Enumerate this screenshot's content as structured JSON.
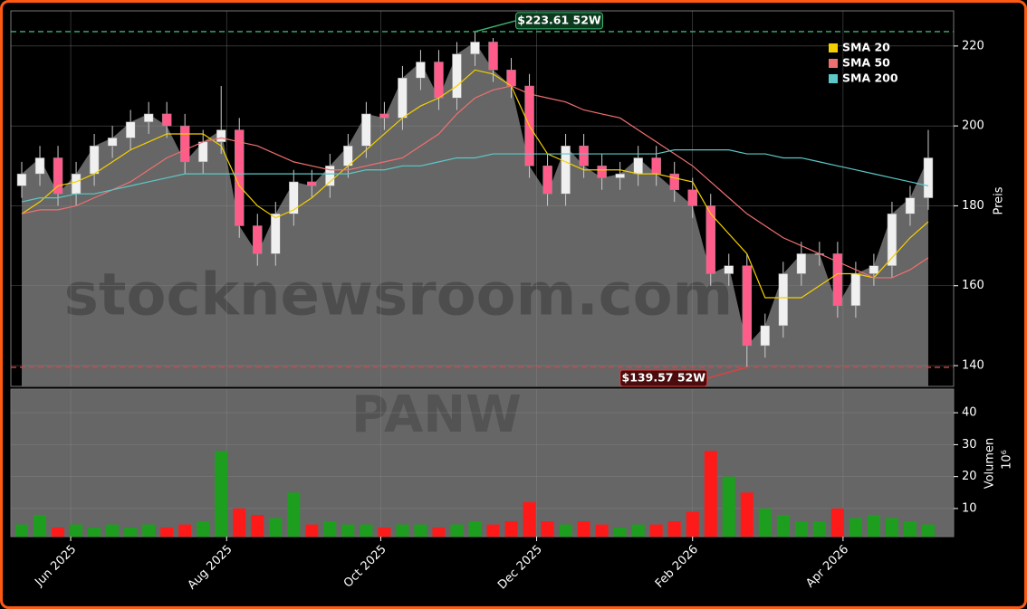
{
  "chart_data": [
    {
      "type": "candlestick",
      "x": [
        0,
        1,
        2,
        3,
        4,
        5,
        6,
        7,
        8,
        9,
        10,
        11,
        12,
        13,
        14,
        15,
        16,
        17,
        18,
        19,
        20,
        21,
        22,
        23,
        24,
        25,
        26,
        27,
        28,
        29,
        30,
        31,
        32,
        33,
        34,
        35,
        36,
        37,
        38,
        39,
        40,
        41,
        42,
        43,
        44,
        45,
        46,
        47,
        48,
        49,
        50
      ],
      "open": [
        185,
        188,
        192,
        183,
        188,
        195,
        197,
        201,
        203,
        200,
        191,
        196,
        199,
        175,
        168,
        178,
        186,
        185,
        190,
        195,
        203,
        202,
        212,
        216,
        207,
        218,
        221,
        214,
        210,
        190,
        183,
        195,
        190,
        187,
        188,
        192,
        188,
        184,
        180,
        163,
        165,
        145,
        150,
        163,
        168,
        168,
        155,
        163,
        165,
        178,
        182
      ],
      "high": [
        191,
        195,
        195,
        191,
        198,
        200,
        204,
        206,
        206,
        203,
        199,
        210,
        202,
        178,
        181,
        189,
        189,
        193,
        198,
        206,
        206,
        215,
        219,
        219,
        221,
        223.61,
        222,
        217,
        213,
        193,
        198,
        198,
        193,
        191,
        195,
        195,
        191,
        187,
        183,
        168,
        168,
        153,
        166,
        171,
        171,
        171,
        166,
        168,
        181,
        185,
        199
      ],
      "low": [
        182,
        185,
        180,
        180,
        185,
        192,
        194,
        198,
        197,
        188,
        188,
        193,
        172,
        165,
        165,
        175,
        182,
        182,
        187,
        192,
        199,
        199,
        209,
        204,
        204,
        215,
        211,
        207,
        187,
        180,
        180,
        187,
        184,
        184,
        185,
        185,
        181,
        177,
        160,
        160,
        139.57,
        142,
        147,
        160,
        165,
        152,
        152,
        160,
        162,
        175,
        179
      ],
      "close": [
        188,
        192,
        183,
        188,
        195,
        197,
        201,
        203,
        200,
        191,
        196,
        199,
        175,
        168,
        178,
        186,
        185,
        190,
        195,
        203,
        202,
        212,
        216,
        207,
        218,
        221,
        214,
        210,
        190,
        183,
        195,
        190,
        187,
        188,
        192,
        188,
        184,
        180,
        163,
        165,
        145,
        150,
        163,
        168,
        168,
        155,
        163,
        165,
        178,
        182,
        192
      ],
      "up_color": "#f0f0f0",
      "down_color": "#ff5c8a",
      "area_color": "#666666",
      "series": [
        {
          "name": "SMA 20",
          "color": "#f5d000",
          "values": [
            178,
            181,
            185,
            186,
            188,
            191,
            194,
            196,
            198,
            198,
            198,
            195,
            185,
            180,
            177,
            179,
            182,
            186,
            190,
            194,
            198,
            202,
            205,
            207,
            210,
            214,
            213,
            210,
            200,
            193,
            191,
            189,
            189,
            189,
            188,
            188,
            187,
            186,
            178,
            173,
            168,
            157,
            157,
            157,
            160,
            163,
            163,
            162,
            167,
            172,
            176
          ]
        },
        {
          "name": "SMA 50",
          "color": "#f07070",
          "values": [
            178,
            179,
            179,
            180,
            182,
            184,
            186,
            189,
            192,
            194,
            196,
            197,
            196,
            195,
            193,
            191,
            190,
            189,
            189,
            190,
            191,
            192,
            195,
            198,
            203,
            207,
            209,
            210,
            208,
            207,
            206,
            204,
            203,
            202,
            199,
            196,
            193,
            190,
            186,
            182,
            178,
            175,
            172,
            170,
            168,
            166,
            164,
            162,
            162,
            164,
            167
          ]
        },
        {
          "name": "SMA 200",
          "color": "#5cc8c8",
          "values": [
            181,
            182,
            182,
            183,
            183,
            184,
            185,
            186,
            187,
            188,
            188,
            188,
            188,
            188,
            188,
            188,
            188,
            188,
            188,
            189,
            189,
            190,
            190,
            191,
            192,
            192,
            193,
            193,
            193,
            193,
            193,
            193,
            193,
            193,
            193,
            193,
            194,
            194,
            194,
            194,
            193,
            193,
            192,
            192,
            191,
            190,
            189,
            188,
            187,
            186,
            185
          ]
        }
      ],
      "reference_lines": [
        {
          "value": 223.61,
          "label": "$223.61 52W",
          "color": "#3cb371"
        },
        {
          "value": 139.57,
          "label": "$139.57 52W",
          "color": "#e04040"
        }
      ],
      "ylabel": "Preis",
      "xlim": [
        -0.6,
        51.4
      ],
      "xticks": [
        {
          "value": 2.7,
          "label": "Jun 2025"
        },
        {
          "value": 11.3,
          "label": "Aug 2025"
        },
        {
          "value": 19.8,
          "label": "Oct 2025"
        },
        {
          "value": 28.4,
          "label": "Dec 2025"
        },
        {
          "value": 37.0,
          "label": "Feb 2026"
        },
        {
          "value": 45.3,
          "label": "Apr 2026"
        }
      ],
      "ylim": [
        134.8,
        228.8
      ],
      "yticks": [
        140,
        160,
        180,
        200,
        220
      ],
      "grid": true,
      "legend": "upper right",
      "watermarks": [
        "stocknewsroom.com",
        "PANW"
      ]
    },
    {
      "type": "volume",
      "x": [
        0,
        1,
        2,
        3,
        4,
        5,
        6,
        7,
        8,
        9,
        10,
        11,
        12,
        13,
        14,
        15,
        16,
        17,
        18,
        19,
        20,
        21,
        22,
        23,
        24,
        25,
        26,
        27,
        28,
        29,
        30,
        31,
        32,
        33,
        34,
        35,
        36,
        37,
        38,
        39,
        40,
        41,
        42,
        43,
        44,
        45,
        46,
        47,
        48,
        49,
        50
      ],
      "values": [
        5,
        8,
        4,
        5,
        4,
        5,
        4,
        5,
        4,
        5,
        6,
        28,
        10,
        8,
        7,
        15,
        5,
        6,
        5,
        5,
        4,
        5,
        5,
        4,
        5,
        6,
        5,
        6,
        12,
        6,
        5,
        6,
        5,
        4,
        5,
        5,
        6,
        9,
        28,
        20,
        15,
        10,
        8,
        6,
        6,
        10,
        7,
        8,
        7,
        6,
        5
      ],
      "up_color": "#1e9e1e",
      "down_color": "#ff1a1a",
      "ylabel": "Volumen",
      "scale_label": "10⁶",
      "ylim": [
        1.2,
        47.4
      ],
      "yticks": [
        10,
        20,
        30,
        40
      ],
      "grid": true
    }
  ]
}
